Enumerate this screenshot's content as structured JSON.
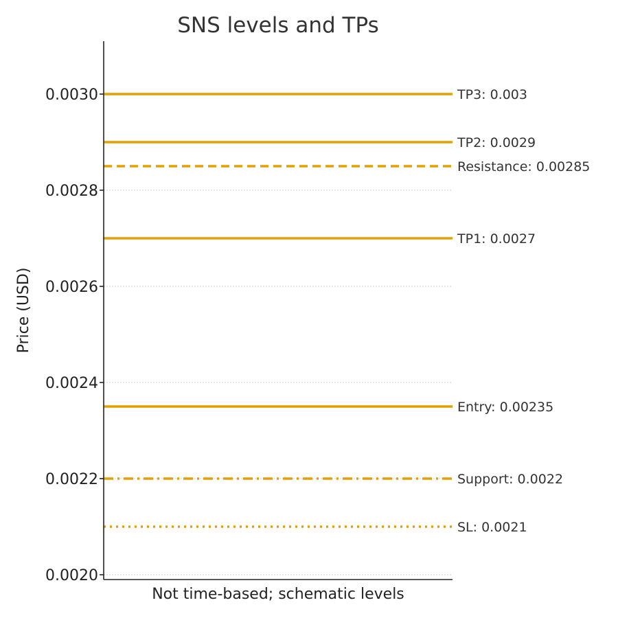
{
  "chart_data": {
    "type": "line",
    "title": "SNS levels and TPs",
    "xlabel": "Not time-based; schematic levels",
    "ylabel": "Price (USD)",
    "ylim": [
      0.00199,
      0.00311
    ],
    "yticks": [
      {
        "value": 0.002,
        "label": "0.0020"
      },
      {
        "value": 0.0022,
        "label": "0.0022"
      },
      {
        "value": 0.0024,
        "label": "0.0024"
      },
      {
        "value": 0.0026,
        "label": "0.0026"
      },
      {
        "value": 0.0028,
        "label": "0.0028"
      },
      {
        "value": 0.003,
        "label": "0.0030"
      }
    ],
    "grid": "horizontal dotted",
    "line_color": "#E69F00",
    "levels": [
      {
        "label": "TP3: 0.003",
        "value": 0.003,
        "style": "solid"
      },
      {
        "label": "TP2: 0.0029",
        "value": 0.0029,
        "style": "solid"
      },
      {
        "label": "Resistance: 0.00285",
        "value": 0.00285,
        "style": "dashed"
      },
      {
        "label": "TP1: 0.0027",
        "value": 0.0027,
        "style": "solid"
      },
      {
        "label": "Entry: 0.00235",
        "value": 0.00235,
        "style": "solid"
      },
      {
        "label": "Support: 0.0022",
        "value": 0.0022,
        "style": "dashdot"
      },
      {
        "label": "SL: 0.0021",
        "value": 0.0021,
        "style": "dotted"
      }
    ]
  }
}
